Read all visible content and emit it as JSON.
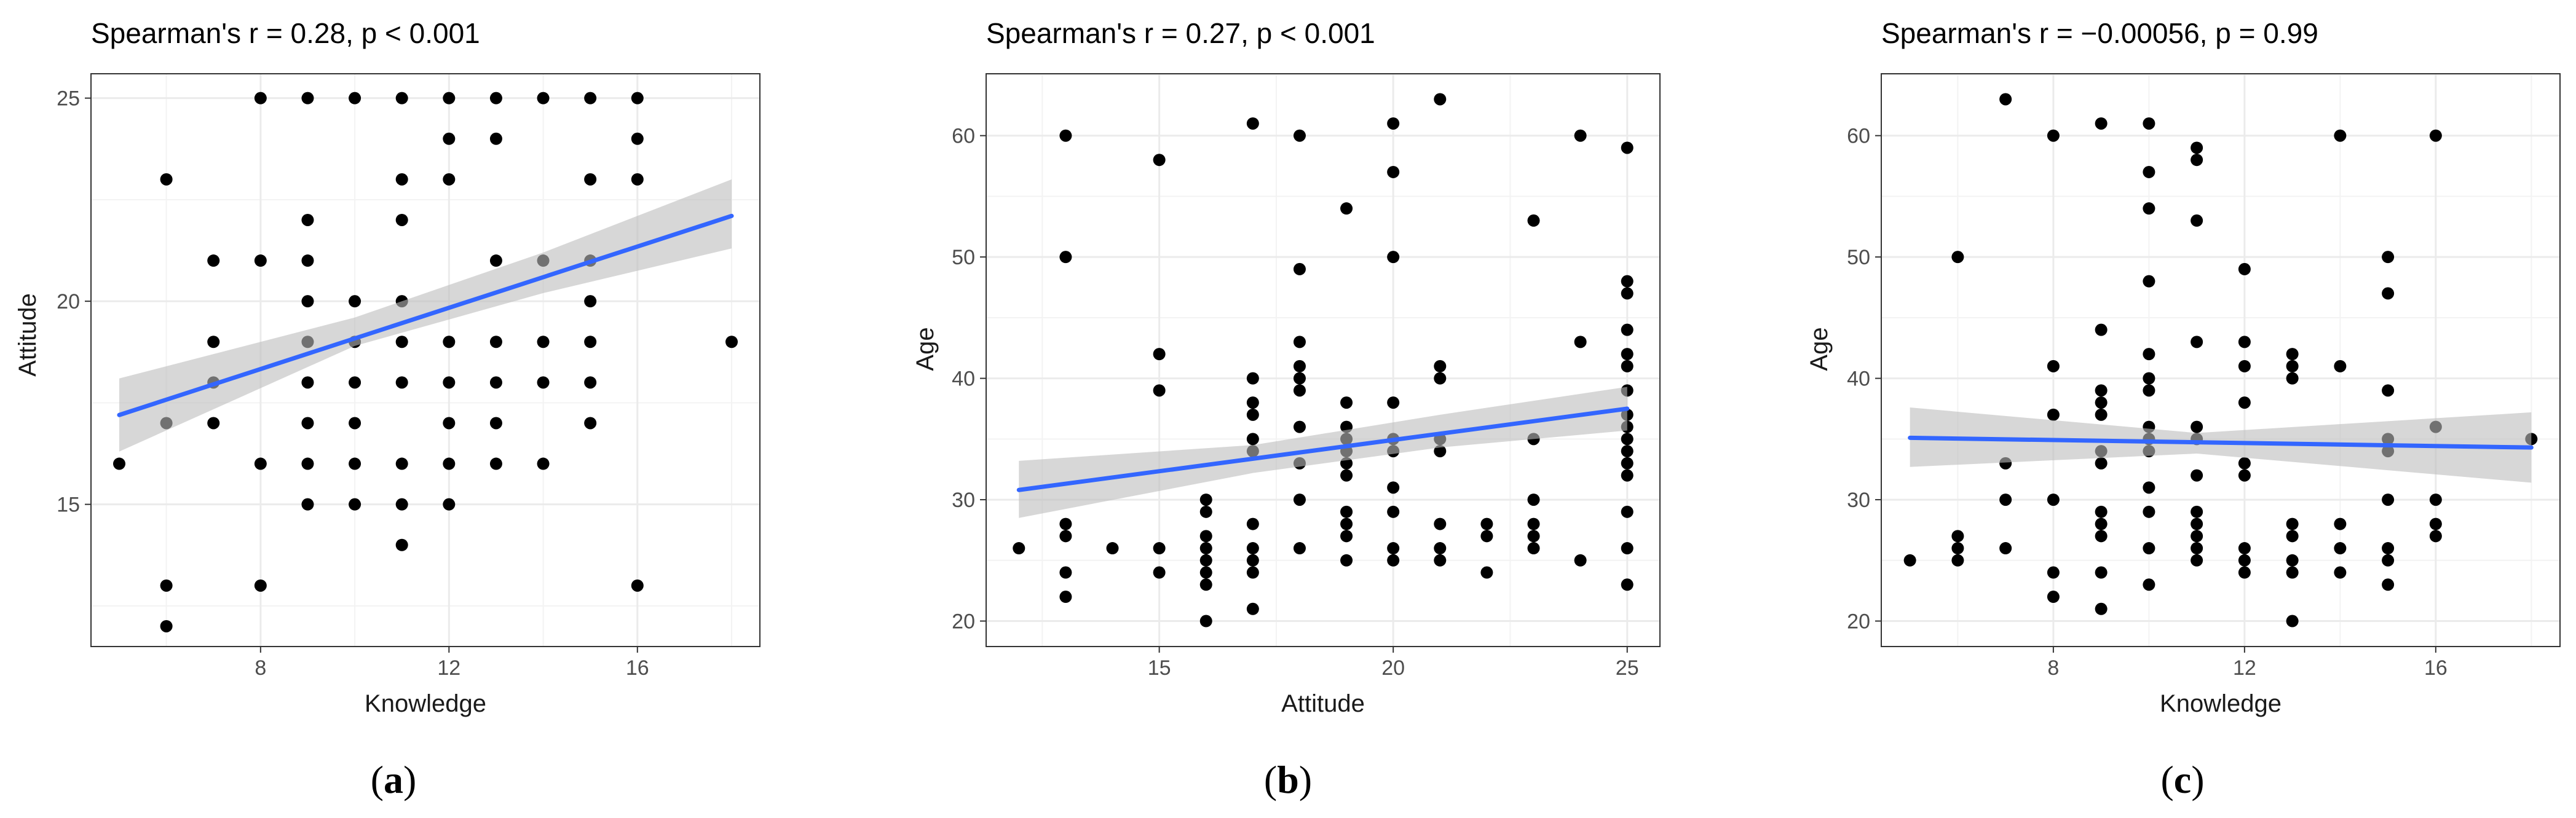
{
  "figure": {
    "captions": [
      {
        "open": "(",
        "letter": "a",
        "close": ")"
      },
      {
        "open": "(",
        "letter": "b",
        "close": ")"
      },
      {
        "open": "(",
        "letter": "c",
        "close": ")"
      }
    ]
  },
  "colors": {
    "points": "#000000",
    "fit_line": "#3366FF",
    "ci_band": "#BDBDBD",
    "panel_background": "#FFFFFF",
    "grid": "#EBEBEB"
  },
  "chart_data": [
    {
      "type": "scatter",
      "title": "Spearman's r = 0.28, p < 0.001",
      "xlabel": "Knowledge",
      "ylabel": "Attitude",
      "xlim": [
        4.4,
        18.6
      ],
      "ylim": [
        11.5,
        25.6
      ],
      "xticks": [
        8,
        12,
        16
      ],
      "yticks": [
        15,
        20,
        25
      ],
      "grid": true,
      "points": [
        [
          5,
          16
        ],
        [
          6,
          23
        ],
        [
          6,
          17
        ],
        [
          6,
          13
        ],
        [
          6,
          12
        ],
        [
          7,
          21
        ],
        [
          7,
          19
        ],
        [
          7,
          18
        ],
        [
          7,
          17
        ],
        [
          8,
          25
        ],
        [
          8,
          21
        ],
        [
          8,
          16
        ],
        [
          8,
          13
        ],
        [
          9,
          25
        ],
        [
          9,
          22
        ],
        [
          9,
          21
        ],
        [
          9,
          20
        ],
        [
          9,
          19
        ],
        [
          9,
          18
        ],
        [
          9,
          17
        ],
        [
          9,
          16
        ],
        [
          9,
          15
        ],
        [
          10,
          25
        ],
        [
          10,
          20
        ],
        [
          10,
          19
        ],
        [
          10,
          18
        ],
        [
          10,
          17
        ],
        [
          10,
          16
        ],
        [
          10,
          15
        ],
        [
          11,
          25
        ],
        [
          11,
          23
        ],
        [
          11,
          22
        ],
        [
          11,
          20
        ],
        [
          11,
          19
        ],
        [
          11,
          18
        ],
        [
          11,
          16
        ],
        [
          11,
          15
        ],
        [
          11,
          14
        ],
        [
          12,
          25
        ],
        [
          12,
          24
        ],
        [
          12,
          23
        ],
        [
          12,
          19
        ],
        [
          12,
          18
        ],
        [
          12,
          17
        ],
        [
          12,
          16
        ],
        [
          12,
          15
        ],
        [
          13,
          25
        ],
        [
          13,
          24
        ],
        [
          13,
          21
        ],
        [
          13,
          19
        ],
        [
          13,
          18
        ],
        [
          13,
          17
        ],
        [
          13,
          16
        ],
        [
          14,
          25
        ],
        [
          14,
          21
        ],
        [
          14,
          19
        ],
        [
          14,
          18
        ],
        [
          14,
          16
        ],
        [
          15,
          25
        ],
        [
          15,
          23
        ],
        [
          15,
          21
        ],
        [
          15,
          20
        ],
        [
          15,
          19
        ],
        [
          15,
          18
        ],
        [
          15,
          17
        ],
        [
          16,
          25
        ],
        [
          16,
          24
        ],
        [
          16,
          23
        ],
        [
          16,
          13
        ],
        [
          18,
          19
        ]
      ],
      "fit": {
        "x": [
          5,
          18
        ],
        "y": [
          17.2,
          22.1
        ]
      },
      "ci": [
        {
          "x": 5,
          "lo": 16.3,
          "hi": 18.1
        },
        {
          "x": 10,
          "lo": 18.9,
          "hi": 19.6
        },
        {
          "x": 14,
          "lo": 20.2,
          "hi": 21.2
        },
        {
          "x": 18,
          "lo": 21.3,
          "hi": 23.0
        }
      ]
    },
    {
      "type": "scatter",
      "title": "Spearman's r = 0.27, p < 0.001",
      "xlabel": "Attitude",
      "ylabel": "Age",
      "xlim": [
        11.3,
        25.7
      ],
      "ylim": [
        17.9,
        65.1
      ],
      "xticks": [
        15,
        20,
        25
      ],
      "yticks": [
        20,
        30,
        40,
        50,
        60
      ],
      "grid": true,
      "points": [
        [
          12,
          26
        ],
        [
          13,
          60
        ],
        [
          13,
          50
        ],
        [
          13,
          28
        ],
        [
          13,
          27
        ],
        [
          13,
          24
        ],
        [
          13,
          22
        ],
        [
          14,
          26
        ],
        [
          15,
          58
        ],
        [
          15,
          42
        ],
        [
          15,
          39
        ],
        [
          15,
          26
        ],
        [
          15,
          24
        ],
        [
          16,
          30
        ],
        [
          16,
          29
        ],
        [
          16,
          27
        ],
        [
          16,
          26
        ],
        [
          16,
          25
        ],
        [
          16,
          24
        ],
        [
          16,
          23
        ],
        [
          16,
          20
        ],
        [
          17,
          61
        ],
        [
          17,
          40
        ],
        [
          17,
          38
        ],
        [
          17,
          37
        ],
        [
          17,
          35
        ],
        [
          17,
          34
        ],
        [
          17,
          28
        ],
        [
          17,
          26
        ],
        [
          17,
          25
        ],
        [
          17,
          24
        ],
        [
          17,
          21
        ],
        [
          18,
          60
        ],
        [
          18,
          49
        ],
        [
          18,
          43
        ],
        [
          18,
          41
        ],
        [
          18,
          40
        ],
        [
          18,
          39
        ],
        [
          18,
          36
        ],
        [
          18,
          33
        ],
        [
          18,
          30
        ],
        [
          18,
          26
        ],
        [
          19,
          54
        ],
        [
          19,
          38
        ],
        [
          19,
          36
        ],
        [
          19,
          35
        ],
        [
          19,
          34
        ],
        [
          19,
          33
        ],
        [
          19,
          32
        ],
        [
          19,
          29
        ],
        [
          19,
          28
        ],
        [
          19,
          27
        ],
        [
          19,
          25
        ],
        [
          20,
          61
        ],
        [
          20,
          57
        ],
        [
          20,
          50
        ],
        [
          20,
          38
        ],
        [
          20,
          35
        ],
        [
          20,
          34
        ],
        [
          20,
          31
        ],
        [
          20,
          29
        ],
        [
          20,
          26
        ],
        [
          20,
          25
        ],
        [
          21,
          63
        ],
        [
          21,
          41
        ],
        [
          21,
          40
        ],
        [
          21,
          35
        ],
        [
          21,
          34
        ],
        [
          21,
          28
        ],
        [
          21,
          26
        ],
        [
          21,
          25
        ],
        [
          22,
          28
        ],
        [
          22,
          27
        ],
        [
          22,
          24
        ],
        [
          23,
          53
        ],
        [
          23,
          35
        ],
        [
          23,
          30
        ],
        [
          23,
          28
        ],
        [
          23,
          27
        ],
        [
          23,
          26
        ],
        [
          24,
          60
        ],
        [
          24,
          43
        ],
        [
          24,
          25
        ],
        [
          25,
          59
        ],
        [
          25,
          48
        ],
        [
          25,
          47
        ],
        [
          25,
          44
        ],
        [
          25,
          42
        ],
        [
          25,
          41
        ],
        [
          25,
          39
        ],
        [
          25,
          37
        ],
        [
          25,
          36
        ],
        [
          25,
          35
        ],
        [
          25,
          34
        ],
        [
          25,
          33
        ],
        [
          25,
          32
        ],
        [
          25,
          29
        ],
        [
          25,
          26
        ],
        [
          25,
          23
        ]
      ],
      "fit": {
        "x": [
          12,
          25
        ],
        "y": [
          30.8,
          37.5
        ]
      },
      "ci": [
        {
          "x": 12,
          "lo": 28.5,
          "hi": 33.2
        },
        {
          "x": 17,
          "lo": 32.2,
          "hi": 34.5
        },
        {
          "x": 21,
          "lo": 34.3,
          "hi": 37.0
        },
        {
          "x": 25,
          "lo": 35.7,
          "hi": 39.3
        }
      ]
    },
    {
      "type": "scatter",
      "title": "Spearman's r = −0.00056, p = 0.99",
      "xlabel": "Knowledge",
      "ylabel": "Age",
      "xlim": [
        4.4,
        18.6
      ],
      "ylim": [
        17.9,
        65.1
      ],
      "xticks": [
        8,
        12,
        16
      ],
      "yticks": [
        20,
        30,
        40,
        50,
        60
      ],
      "grid": true,
      "points": [
        [
          5,
          25
        ],
        [
          6,
          50
        ],
        [
          6,
          27
        ],
        [
          6,
          26
        ],
        [
          6,
          25
        ],
        [
          7,
          63
        ],
        [
          7,
          33
        ],
        [
          7,
          30
        ],
        [
          7,
          26
        ],
        [
          8,
          60
        ],
        [
          8,
          41
        ],
        [
          8,
          37
        ],
        [
          8,
          30
        ],
        [
          8,
          24
        ],
        [
          8,
          22
        ],
        [
          9,
          61
        ],
        [
          9,
          44
        ],
        [
          9,
          39
        ],
        [
          9,
          38
        ],
        [
          9,
          37
        ],
        [
          9,
          34
        ],
        [
          9,
          33
        ],
        [
          9,
          29
        ],
        [
          9,
          28
        ],
        [
          9,
          27
        ],
        [
          9,
          24
        ],
        [
          9,
          21
        ],
        [
          10,
          61
        ],
        [
          10,
          57
        ],
        [
          10,
          54
        ],
        [
          10,
          48
        ],
        [
          10,
          42
        ],
        [
          10,
          40
        ],
        [
          10,
          39
        ],
        [
          10,
          36
        ],
        [
          10,
          35
        ],
        [
          10,
          34
        ],
        [
          10,
          31
        ],
        [
          10,
          29
        ],
        [
          10,
          26
        ],
        [
          10,
          23
        ],
        [
          11,
          59
        ],
        [
          11,
          58
        ],
        [
          11,
          53
        ],
        [
          11,
          43
        ],
        [
          11,
          36
        ],
        [
          11,
          35
        ],
        [
          11,
          32
        ],
        [
          11,
          29
        ],
        [
          11,
          28
        ],
        [
          11,
          27
        ],
        [
          11,
          26
        ],
        [
          11,
          25
        ],
        [
          12,
          49
        ],
        [
          12,
          43
        ],
        [
          12,
          41
        ],
        [
          12,
          38
        ],
        [
          12,
          33
        ],
        [
          12,
          32
        ],
        [
          12,
          26
        ],
        [
          12,
          25
        ],
        [
          12,
          24
        ],
        [
          13,
          42
        ],
        [
          13,
          41
        ],
        [
          13,
          40
        ],
        [
          13,
          28
        ],
        [
          13,
          27
        ],
        [
          13,
          25
        ],
        [
          13,
          24
        ],
        [
          13,
          20
        ],
        [
          14,
          60
        ],
        [
          14,
          41
        ],
        [
          14,
          28
        ],
        [
          14,
          26
        ],
        [
          14,
          24
        ],
        [
          15,
          50
        ],
        [
          15,
          47
        ],
        [
          15,
          39
        ],
        [
          15,
          35
        ],
        [
          15,
          34
        ],
        [
          15,
          30
        ],
        [
          15,
          26
        ],
        [
          15,
          25
        ],
        [
          15,
          23
        ],
        [
          16,
          60
        ],
        [
          16,
          36
        ],
        [
          16,
          30
        ],
        [
          16,
          28
        ],
        [
          16,
          27
        ],
        [
          18,
          35
        ]
      ],
      "fit": {
        "x": [
          5,
          18
        ],
        "y": [
          35.1,
          34.3
        ]
      },
      "ci": [
        {
          "x": 5,
          "lo": 32.7,
          "hi": 37.6
        },
        {
          "x": 11,
          "lo": 33.8,
          "hi": 35.5
        },
        {
          "x": 18,
          "lo": 31.4,
          "hi": 37.2
        }
      ]
    }
  ]
}
